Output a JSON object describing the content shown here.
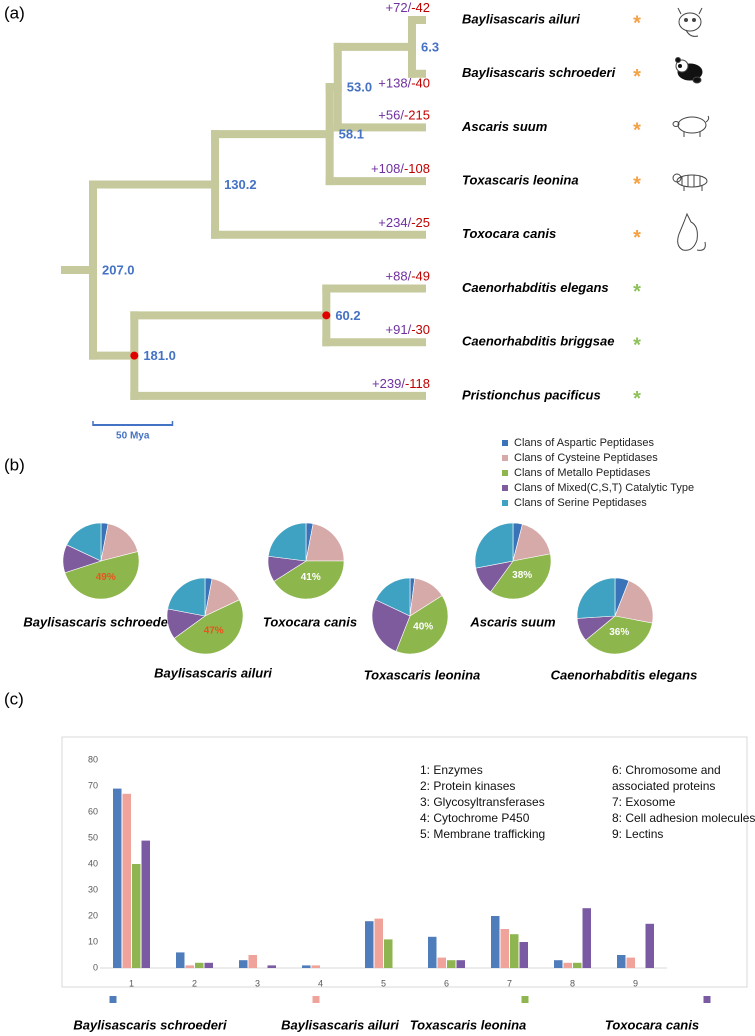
{
  "chart_data": [
    {
      "type": "tree",
      "panel_label": "(a)",
      "branch_color": "#c5c99c",
      "node_label_color": "#4472c4",
      "gain_color": "#7030a0",
      "loss_color": "#c00000",
      "separator": "/",
      "calibration_color": "#e00000",
      "scale_bar": {
        "value": 50,
        "label": "50 Mya"
      },
      "root": {
        "age": {
          "value": 207,
          "label": "207.0"
        },
        "children": [
          {
            "age": {
              "value": 130.2,
              "label": "130.2"
            },
            "children": [
              {
                "age": {
                  "value": 58.1,
                  "label": "58.1"
                },
                "children": [
                  {
                    "age": {
                      "value": 53,
                      "label": "53.0"
                    },
                    "children": [
                      {
                        "age": 6.3,
                        "children": [
                          {
                            "name": "Baylisascaris ailuri",
                            "gain": {
                              "value": 72,
                              "label": "+72"
                            },
                            "loss": {
                              "value": -42,
                              "label": "-42"
                            },
                            "star": "*",
                            "star_color": "#f4a146"
                          },
                          {
                            "name": "Baylisascaris schroederi",
                            "gain": {
                              "value": 138,
                              "label": "+138"
                            },
                            "loss": {
                              "value": -40,
                              "label": "-40"
                            },
                            "star": "*",
                            "star_color": "#f4a146"
                          }
                        ]
                      },
                      {
                        "name": "Ascaris suum",
                        "gain": {
                          "value": 56,
                          "label": "+56"
                        },
                        "loss": {
                          "value": -215,
                          "label": "-215"
                        },
                        "star": "*",
                        "star_color": "#f4a146"
                      }
                    ]
                  },
                  {
                    "name": "Toxascaris leonina",
                    "gain": {
                      "value": 108,
                      "label": "+108"
                    },
                    "loss": {
                      "value": -108,
                      "label": "-108"
                    },
                    "star": "*",
                    "star_color": "#f4a146"
                  }
                ]
              },
              {
                "name": "Toxocara canis",
                "gain": {
                  "value": 234,
                  "label": "+234"
                },
                "loss": {
                  "value": -25,
                  "label": "-25"
                },
                "star": "*",
                "star_color": "#f4a146"
              }
            ]
          },
          {
            "age": {
              "value": 181,
              "label": "181.0"
            },
            "calibrated": true,
            "children": [
              {
                "age": {
                  "value": 60.2,
                  "label": "60.2"
                },
                "calibrated": true,
                "children": [
                  {
                    "name": "Caenorhabditis elegans",
                    "gain": {
                      "value": 88,
                      "label": "+88"
                    },
                    "loss": {
                      "value": -49,
                      "label": "-49"
                    },
                    "star": "*",
                    "star_color": "#8dc25a"
                  },
                  {
                    "name": "Caenorhabditis briggsae",
                    "gain": {
                      "value": 91,
                      "label": "+91"
                    },
                    "loss": {
                      "value": -30,
                      "label": "-30"
                    },
                    "star": "*",
                    "star_color": "#8dc25a"
                  }
                ]
              },
              {
                "name": "Pristionchus pacificus",
                "gain": {
                  "value": 239,
                  "label": "+239"
                },
                "loss": {
                  "value": -118,
                  "label": "-118"
                },
                "star": "*",
                "star_color": "#8dc25a"
              }
            ]
          }
        ]
      }
    },
    {
      "type": "pie",
      "panel_label": "(b)",
      "series": [
        {
          "name": "Clans of Aspartic Peptidases",
          "color": "#3b73b9"
        },
        {
          "name": "Clans of Cysteine Peptidases",
          "color": "#d6aaa9"
        },
        {
          "name": "Clans of Metallo Peptidases",
          "color": "#8db64c"
        },
        {
          "name": "Clans of Mixed(C,S,T) Catalytic Type",
          "color": "#7d5b9c"
        },
        {
          "name": "Clans of Serine Peptidases",
          "color": "#40a2c2"
        }
      ],
      "pies": [
        {
          "name": "Baylisascaris schroederi",
          "values": [
            3,
            18,
            49,
            12,
            18
          ],
          "value_labels": [
            null,
            null,
            "49%",
            null,
            null
          ],
          "label_color": "#e8541e"
        },
        {
          "name": "Baylisascaris ailuri",
          "values": [
            3,
            15,
            47,
            13,
            22
          ],
          "value_labels": [
            null,
            null,
            "47%",
            null,
            null
          ],
          "label_color": "#e8541e"
        },
        {
          "name": "Toxocara canis",
          "values": [
            3,
            22,
            41,
            11,
            23
          ],
          "value_labels": [
            null,
            null,
            "41%",
            null,
            null
          ],
          "label_color": "#ffffff"
        },
        {
          "name": "Toxascaris leonina",
          "values": [
            2,
            14,
            40,
            26,
            18
          ],
          "value_labels": [
            null,
            null,
            "40%",
            null,
            null
          ],
          "label_color": "#ffffff"
        },
        {
          "name": "Ascaris suum",
          "values": [
            4,
            18,
            38,
            12,
            28
          ],
          "value_labels": [
            null,
            null,
            "38%",
            null,
            null
          ],
          "label_color": "#ffffff"
        },
        {
          "name": "Caenorhabditis elegans",
          "values": [
            6,
            22,
            36,
            10,
            26
          ],
          "value_labels": [
            null,
            null,
            "36%",
            null,
            null
          ],
          "label_color": "#ffffff"
        }
      ]
    },
    {
      "type": "bar",
      "panel_label": "(c)",
      "categories": [
        "1",
        "2",
        "3",
        "4",
        "5",
        "6",
        "7",
        "8",
        "9"
      ],
      "series": [
        {
          "name": "Baylisascaris schroederi",
          "color": "#4f7cba",
          "values": [
            69,
            6,
            3,
            1,
            18,
            12,
            20,
            3,
            5
          ]
        },
        {
          "name": "Baylisascaris ailuri",
          "color": "#f0a39a",
          "values": [
            67,
            1,
            5,
            1,
            19,
            4,
            15,
            2,
            4
          ]
        },
        {
          "name": "Toxascaris leonina",
          "color": "#8fb551",
          "values": [
            40,
            2,
            0,
            0,
            11,
            3,
            13,
            2,
            0
          ]
        },
        {
          "name": "Toxocara canis",
          "color": "#7a5aa3",
          "values": [
            49,
            2,
            1,
            0,
            0,
            3,
            10,
            23,
            17
          ]
        }
      ],
      "ylim": [
        0,
        80
      ],
      "yticks": [
        0,
        10,
        20,
        30,
        40,
        50,
        60,
        70,
        80
      ],
      "key_columns": [
        [
          "1: Enzymes",
          "2: Protein kinases",
          "3: Glycosyltransferases",
          "4: Cytochrome P450",
          "5: Membrane trafficking"
        ],
        [
          "6: Chromosome and",
          "associated proteins",
          "7: Exosome",
          "8: Cell adhesion molecules",
          "9:  Lectins"
        ]
      ]
    }
  ]
}
